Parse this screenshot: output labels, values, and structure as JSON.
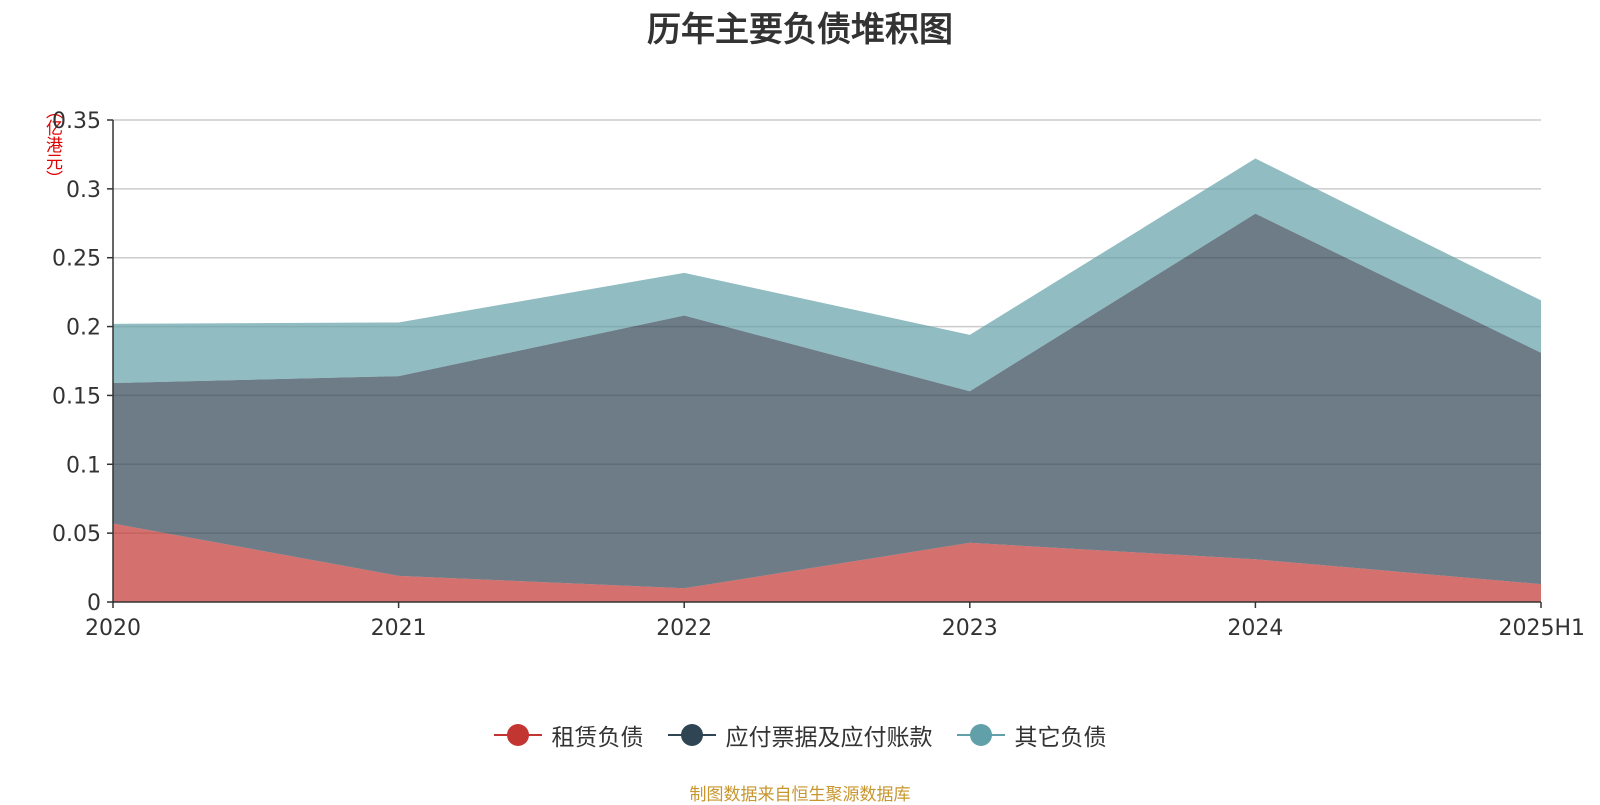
{
  "chart_data": {
    "type": "area",
    "stacked": true,
    "title": "历年主要负债堆积图",
    "unit_label": "（亿港元）",
    "categories": [
      "2020",
      "2021",
      "2022",
      "2023",
      "2024",
      "2025H1"
    ],
    "ylim": [
      0,
      0.35
    ],
    "yticks": [
      0,
      0.05,
      0.1,
      0.15,
      0.2,
      0.25,
      0.3,
      0.35
    ],
    "ytick_labels": [
      "0",
      "0.05",
      "0.1",
      "0.15",
      "0.2",
      "0.25",
      "0.3",
      "0.35"
    ],
    "grid": true,
    "legend_position": "bottom-center",
    "series": [
      {
        "name": "租赁负债",
        "color": "#c23531",
        "values": [
          0.057,
          0.019,
          0.01,
          0.043,
          0.031,
          0.013
        ]
      },
      {
        "name": "应付票据及应付账款",
        "color": "#2f4554",
        "values": [
          0.102,
          0.145,
          0.198,
          0.11,
          0.251,
          0.168
        ]
      },
      {
        "name": "其它负债",
        "color": "#61a0a8",
        "values": [
          0.043,
          0.039,
          0.031,
          0.041,
          0.04,
          0.038
        ]
      }
    ]
  },
  "source_note": "制图数据来自恒生聚源数据库"
}
